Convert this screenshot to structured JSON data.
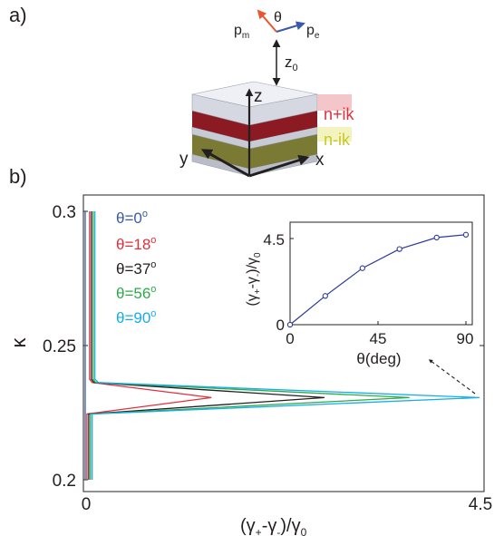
{
  "panel_a": {
    "label": "a)",
    "angle_symbol": "θ",
    "p_m": {
      "main": "p",
      "sub": "m"
    },
    "p_e": {
      "main": "p",
      "sub": "e"
    },
    "z0": {
      "main": "z",
      "sub": "0"
    },
    "axis_z": "z",
    "axis_x": "x",
    "axis_y": "y",
    "layer_gain": "n+ik",
    "layer_loss": "n-ik",
    "colors": {
      "p_m": "#e8552f",
      "p_e": "#3a5aa8",
      "gain": "#e0303c",
      "loss": "#c8c82a",
      "gain_fill": "#8b1a22",
      "loss_fill": "#6b6b1f",
      "slab": "#c7cbd6"
    }
  },
  "panel_b": {
    "label": "b)",
    "y_tick_labels": [
      "0.3",
      "0.25",
      "0.2"
    ],
    "x_tick_labels": [
      "0",
      "4.5"
    ],
    "ylabel": "κ",
    "xlabel": {
      "open": "(γ",
      "sub1": "+",
      "mid": "-γ",
      "sub2": "-",
      "close": ")/γ",
      "sub3": "0"
    },
    "legend": [
      {
        "text": "θ=0",
        "sup": "o",
        "color": "#3a5aa8"
      },
      {
        "text": "θ=18",
        "sup": "o",
        "color": "#e0303c"
      },
      {
        "text": "θ=37",
        "sup": "o",
        "color": "#231f20"
      },
      {
        "text": "θ=56",
        "sup": "o",
        "color": "#2eaa4a"
      },
      {
        "text": "θ=90",
        "sup": "o",
        "color": "#16aee8"
      }
    ],
    "inset": {
      "x_tick_labels": [
        "0",
        "45",
        "90"
      ],
      "y_tick_labels": [
        "4.5",
        "0"
      ],
      "xlabel": "θ(deg)",
      "ylabel": {
        "open": "(γ",
        "sub1": "+",
        "mid": "-γ",
        "sub2": "-",
        "close": ")/γ",
        "sub3": "0"
      },
      "color": "#2b3a9a"
    }
  },
  "chart_data": [
    {
      "type": "line",
      "xlim": [
        0,
        4.5
      ],
      "ylim": [
        0.2,
        0.3
      ],
      "y_ticks": [
        0.2,
        0.25,
        0.3
      ],
      "x_ticks": [
        0,
        4.5
      ],
      "series": [
        {
          "name": "θ=0°",
          "color": "#3a5aa8",
          "points": [
            [
              0.0,
              0.2
            ],
            [
              0.0,
              0.3
            ]
          ]
        },
        {
          "name": "θ=18°",
          "color": "#e0303c",
          "points": [
            [
              0.02,
              0.2
            ],
            [
              0.02,
              0.2245
            ],
            [
              1.44,
              0.2306
            ],
            [
              0.08,
              0.2362
            ],
            [
              0.05,
              0.2375
            ],
            [
              0.05,
              0.3
            ]
          ]
        },
        {
          "name": "θ=37°",
          "color": "#231f20",
          "points": [
            [
              0.04,
              0.2
            ],
            [
              0.04,
              0.2245
            ],
            [
              2.73,
              0.2306
            ],
            [
              0.1,
              0.2362
            ],
            [
              0.07,
              0.2375
            ],
            [
              0.07,
              0.3
            ]
          ]
        },
        {
          "name": "θ=56°",
          "color": "#2eaa4a",
          "points": [
            [
              0.06,
              0.2
            ],
            [
              0.06,
              0.2245
            ],
            [
              3.7,
              0.2306
            ],
            [
              0.12,
              0.2362
            ],
            [
              0.09,
              0.2375
            ],
            [
              0.09,
              0.3
            ]
          ]
        },
        {
          "name": "θ=90°",
          "color": "#16aee8",
          "points": [
            [
              0.08,
              0.2
            ],
            [
              0.08,
              0.2245
            ],
            [
              4.5,
              0.2306
            ],
            [
              0.15,
              0.2362
            ],
            [
              0.11,
              0.2375
            ],
            [
              0.11,
              0.3
            ]
          ]
        }
      ]
    },
    {
      "type": "line",
      "xlim": [
        0,
        93
      ],
      "ylim": [
        0,
        5
      ],
      "x_ticks": [
        0,
        45,
        90
      ],
      "y_ticks": [
        0,
        4.5
      ],
      "series": [
        {
          "x": [
            0,
            18,
            37,
            56,
            75,
            90
          ],
          "y": [
            0.0,
            1.5,
            2.95,
            3.95,
            4.55,
            4.7
          ]
        }
      ]
    }
  ]
}
